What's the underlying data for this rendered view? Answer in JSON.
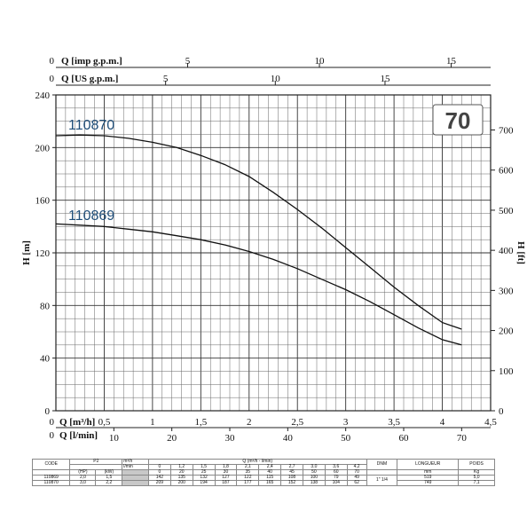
{
  "chart_data": {
    "type": "line",
    "badge": "70",
    "x": [
      0,
      0.25,
      0.5,
      0.75,
      1,
      1.25,
      1.5,
      1.75,
      2,
      2.25,
      2.5,
      2.75,
      3,
      3.25,
      3.5,
      3.75,
      4,
      4.2
    ],
    "series": [
      {
        "name": "110870",
        "color": "#1f4e79",
        "values": [
          209,
          209.5,
          209,
          207,
          204,
          200,
          194,
          187,
          178,
          166,
          153,
          139,
          124,
          109,
          94,
          80,
          67,
          62
        ]
      },
      {
        "name": "110869",
        "color": "#1f4e79",
        "values": [
          142,
          141,
          140,
          138,
          136,
          133,
          130,
          126,
          121,
          115,
          108,
          100,
          92,
          83,
          73,
          63,
          54,
          50
        ]
      }
    ],
    "xlim": [
      0,
      4.5
    ],
    "ylim": [
      0,
      240
    ],
    "axes": {
      "bottom_primary": {
        "label": "Q [m³/h]",
        "ticks": [
          "0,5",
          "1",
          "1,5",
          "2",
          "2,5",
          "3",
          "3,5",
          "4",
          "4,5"
        ],
        "tick_values": [
          0.5,
          1,
          1.5,
          2,
          2.5,
          3,
          3.5,
          4,
          4.5
        ]
      },
      "bottom_secondary": {
        "label": "Q [l/min]",
        "ticks": [
          "10",
          "20",
          "30",
          "40",
          "50",
          "60",
          "70"
        ],
        "tick_values": [
          10,
          20,
          30,
          40,
          50,
          60,
          70
        ],
        "lpm_per_m3h": 16.6667
      },
      "top_imp": {
        "label": "Q [imp g.p.m.]",
        "ticks": [
          "5",
          "10",
          "15"
        ],
        "tick_values": [
          5,
          10,
          15
        ],
        "gpm_per_m3h": 3.666
      },
      "top_us": {
        "label": "Q [US g.p.m.]",
        "ticks": [
          "5",
          "10",
          "15"
        ],
        "tick_values": [
          5,
          10,
          15
        ],
        "gpm_per_m3h": 4.403
      },
      "left": {
        "label": "H [m]",
        "ticks": [
          "0",
          "40",
          "80",
          "120",
          "160",
          "200",
          "240"
        ],
        "tick_values": [
          0,
          40,
          80,
          120,
          160,
          200,
          240
        ]
      },
      "right": {
        "label": "H [ft]",
        "ticks": [
          "0",
          "100",
          "200",
          "300",
          "400",
          "500",
          "600",
          "700"
        ],
        "tick_values": [
          0,
          100,
          200,
          300,
          400,
          500,
          600,
          700
        ],
        "ft_per_m": 3.2808
      }
    },
    "origin_label": "0",
    "grid": true
  },
  "table": {
    "header": {
      "code": "CODE",
      "p2": "P2",
      "q_units": "Q (m³/h - l/min)",
      "dnm": "DNM",
      "longueur": "LONGUEUR",
      "poids": "POIDS"
    },
    "units_row": {
      "hp": "(HP)",
      "kw": "(kW)",
      "h": "H (m)",
      "mm": "mm",
      "kg": "Kg"
    },
    "flow_m3h": [
      "m³/h",
      "0",
      "1,2",
      "1,5",
      "1,8",
      "2,1",
      "2,4",
      "2,7",
      "3,0",
      "3,6",
      "4,2"
    ],
    "flow_lmin": [
      "l/min",
      "0",
      "20",
      "25",
      "30",
      "35",
      "40",
      "45",
      "50",
      "60",
      "70"
    ],
    "rows": [
      {
        "code": "110869",
        "hp": "2,0",
        "kw": "1,5",
        "h": [
          "142",
          "135",
          "132",
          "127",
          "122",
          "115",
          "108",
          "100",
          "79",
          "49"
        ],
        "dnm": "1\" 1/4",
        "mm": "519",
        "kg": "5,0"
      },
      {
        "code": "110870",
        "hp": "3,0",
        "kw": "2,2",
        "h": [
          "209",
          "200",
          "194",
          "187",
          "177",
          "165",
          "152",
          "138",
          "104",
          "62"
        ],
        "dnm": "",
        "mm": "749",
        "kg": "7,1"
      }
    ]
  }
}
